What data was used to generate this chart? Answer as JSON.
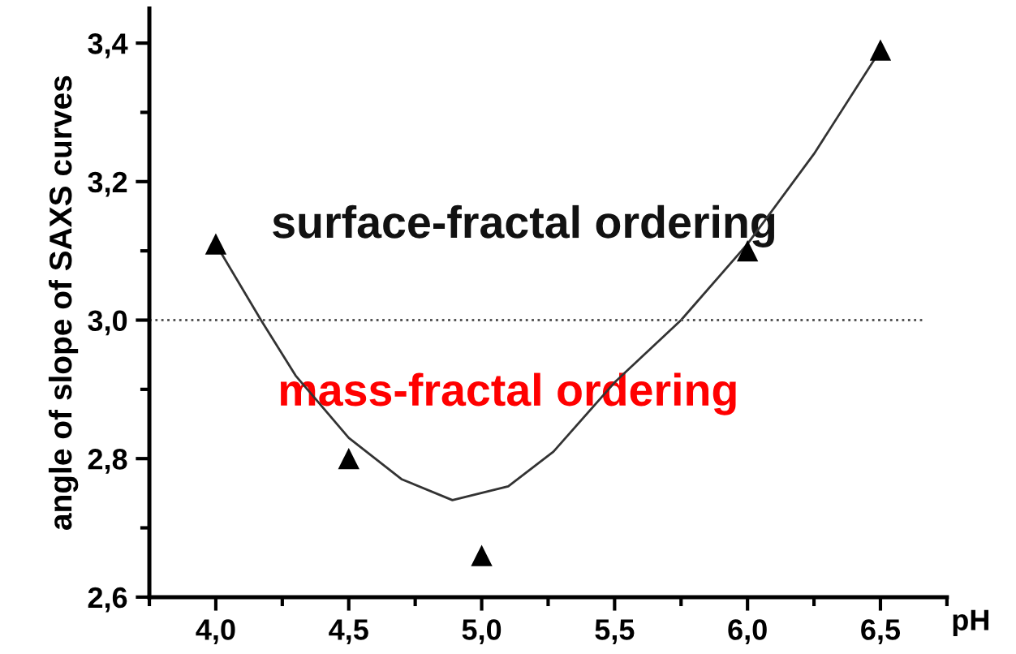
{
  "chart_data": {
    "type": "scatter",
    "xlabel": "pH",
    "ylabel": "angle of slope of SAXS curves",
    "series": [
      {
        "color": "#000000",
        "marker": "triangle",
        "x": [
          4.0,
          4.5,
          5.0,
          6.0,
          6.5
        ],
        "values": [
          3.11,
          2.8,
          2.66,
          3.1,
          3.39
        ]
      },
      {
        "type": "line",
        "color": "#333333",
        "marker": "none",
        "line_style": "solid",
        "x": [
          4.0,
          4.17,
          4.3,
          4.5,
          4.7,
          4.89,
          5.1,
          5.27,
          5.5,
          5.75,
          6.0,
          6.25,
          6.5
        ],
        "values": [
          3.11,
          3.0,
          2.92,
          2.83,
          2.77,
          2.74,
          2.76,
          2.81,
          2.91,
          3.0,
          3.11,
          3.24,
          3.39
        ]
      }
    ],
    "xlim": [
      3.75,
      6.75
    ],
    "ylim": [
      2.6,
      3.45
    ],
    "xticks": [
      {
        "value": 4.0,
        "label": "4,0"
      },
      {
        "value": 4.5,
        "label": "4,5"
      },
      {
        "value": 5.0,
        "label": "5,0"
      },
      {
        "value": 5.5,
        "label": "5,5"
      },
      {
        "value": 6.0,
        "label": "6,0"
      },
      {
        "value": 6.5,
        "label": "6,5"
      }
    ],
    "yticks": [
      {
        "value": 2.6,
        "label": "2,6"
      },
      {
        "value": 2.8,
        "label": "2,8"
      },
      {
        "value": 3.0,
        "label": "3,0"
      },
      {
        "value": 3.2,
        "label": "3,2"
      },
      {
        "value": 3.4,
        "label": "3,4"
      }
    ],
    "ref_lines": [
      {
        "axis": "y",
        "value": 3.0,
        "color": "#555555",
        "line_style": "dotted"
      }
    ],
    "annotations": [
      "surface-fractal ordering",
      "mass-fractal ordering"
    ],
    "grid": false,
    "legend": false
  }
}
